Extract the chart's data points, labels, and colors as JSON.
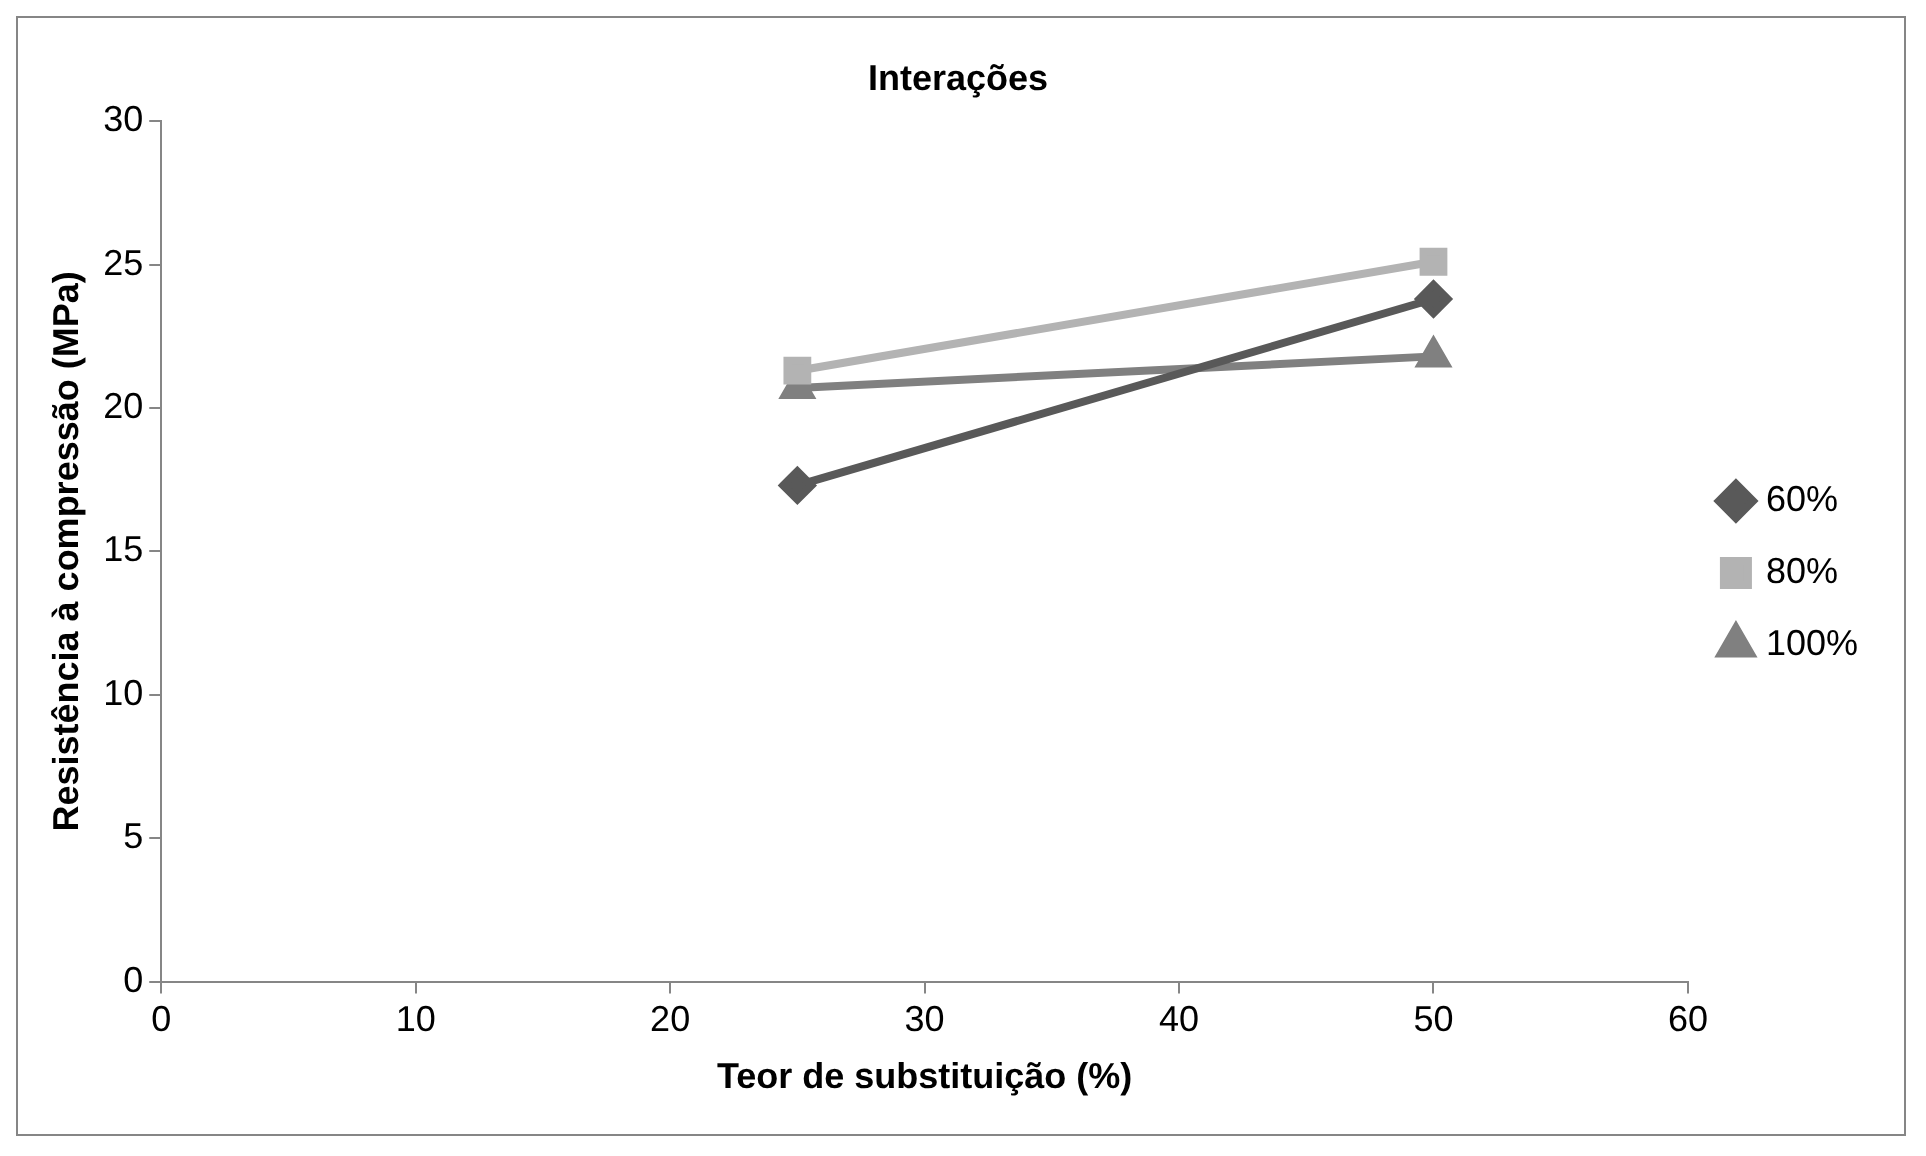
{
  "chart_data": {
    "type": "line",
    "title": "Interações",
    "xlabel": "Teor de substituição (%)",
    "ylabel": "Resistência à compressão (MPa)",
    "x": [
      25,
      50
    ],
    "series": [
      {
        "name": "60%",
        "color": "#595959",
        "values": [
          17.3,
          23.8
        ],
        "marker": "diamond"
      },
      {
        "name": "80%",
        "color": "#b3b3b3",
        "values": [
          21.3,
          25.1
        ],
        "marker": "square"
      },
      {
        "name": "100%",
        "color": "#808080",
        "values": [
          20.7,
          21.8
        ],
        "marker": "triangle"
      }
    ],
    "xlim": [
      0,
      60
    ],
    "xticks": [
      0,
      10,
      20,
      30,
      40,
      50,
      60
    ],
    "ylim": [
      0,
      30
    ],
    "yticks": [
      0,
      5,
      10,
      15,
      20,
      25,
      30
    ],
    "grid": false,
    "legend": "right",
    "line_style": "solid"
  }
}
